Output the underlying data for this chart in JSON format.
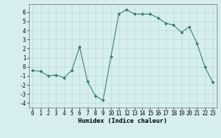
{
  "x": [
    0,
    1,
    2,
    3,
    4,
    5,
    6,
    7,
    8,
    9,
    10,
    11,
    12,
    13,
    14,
    15,
    16,
    17,
    18,
    19,
    20,
    21,
    22,
    23
  ],
  "y": [
    -0.4,
    -0.5,
    -1.0,
    -0.9,
    -1.2,
    -0.4,
    2.2,
    -1.6,
    -3.2,
    -3.7,
    1.1,
    5.8,
    6.3,
    5.8,
    5.8,
    5.8,
    5.4,
    4.8,
    4.6,
    3.8,
    4.4,
    2.6,
    0.0,
    -1.7
  ],
  "line_color": "#2e7d6e",
  "marker": "D",
  "marker_size": 2.0,
  "bg_color": "#d6eeee",
  "grid_color": "#b8d8d8",
  "xlabel": "Humidex (Indice chaleur)",
  "xlabel_fontsize": 6.5,
  "ylim": [
    -4.5,
    6.9
  ],
  "xlim": [
    -0.5,
    23.5
  ],
  "yticks": [
    -4,
    -3,
    -2,
    -1,
    0,
    1,
    2,
    3,
    4,
    5,
    6
  ],
  "xticks": [
    0,
    1,
    2,
    3,
    4,
    5,
    6,
    7,
    8,
    9,
    10,
    11,
    12,
    13,
    14,
    15,
    16,
    17,
    18,
    19,
    20,
    21,
    22,
    23
  ],
  "tick_fontsize": 5.5,
  "linewidth": 0.8
}
